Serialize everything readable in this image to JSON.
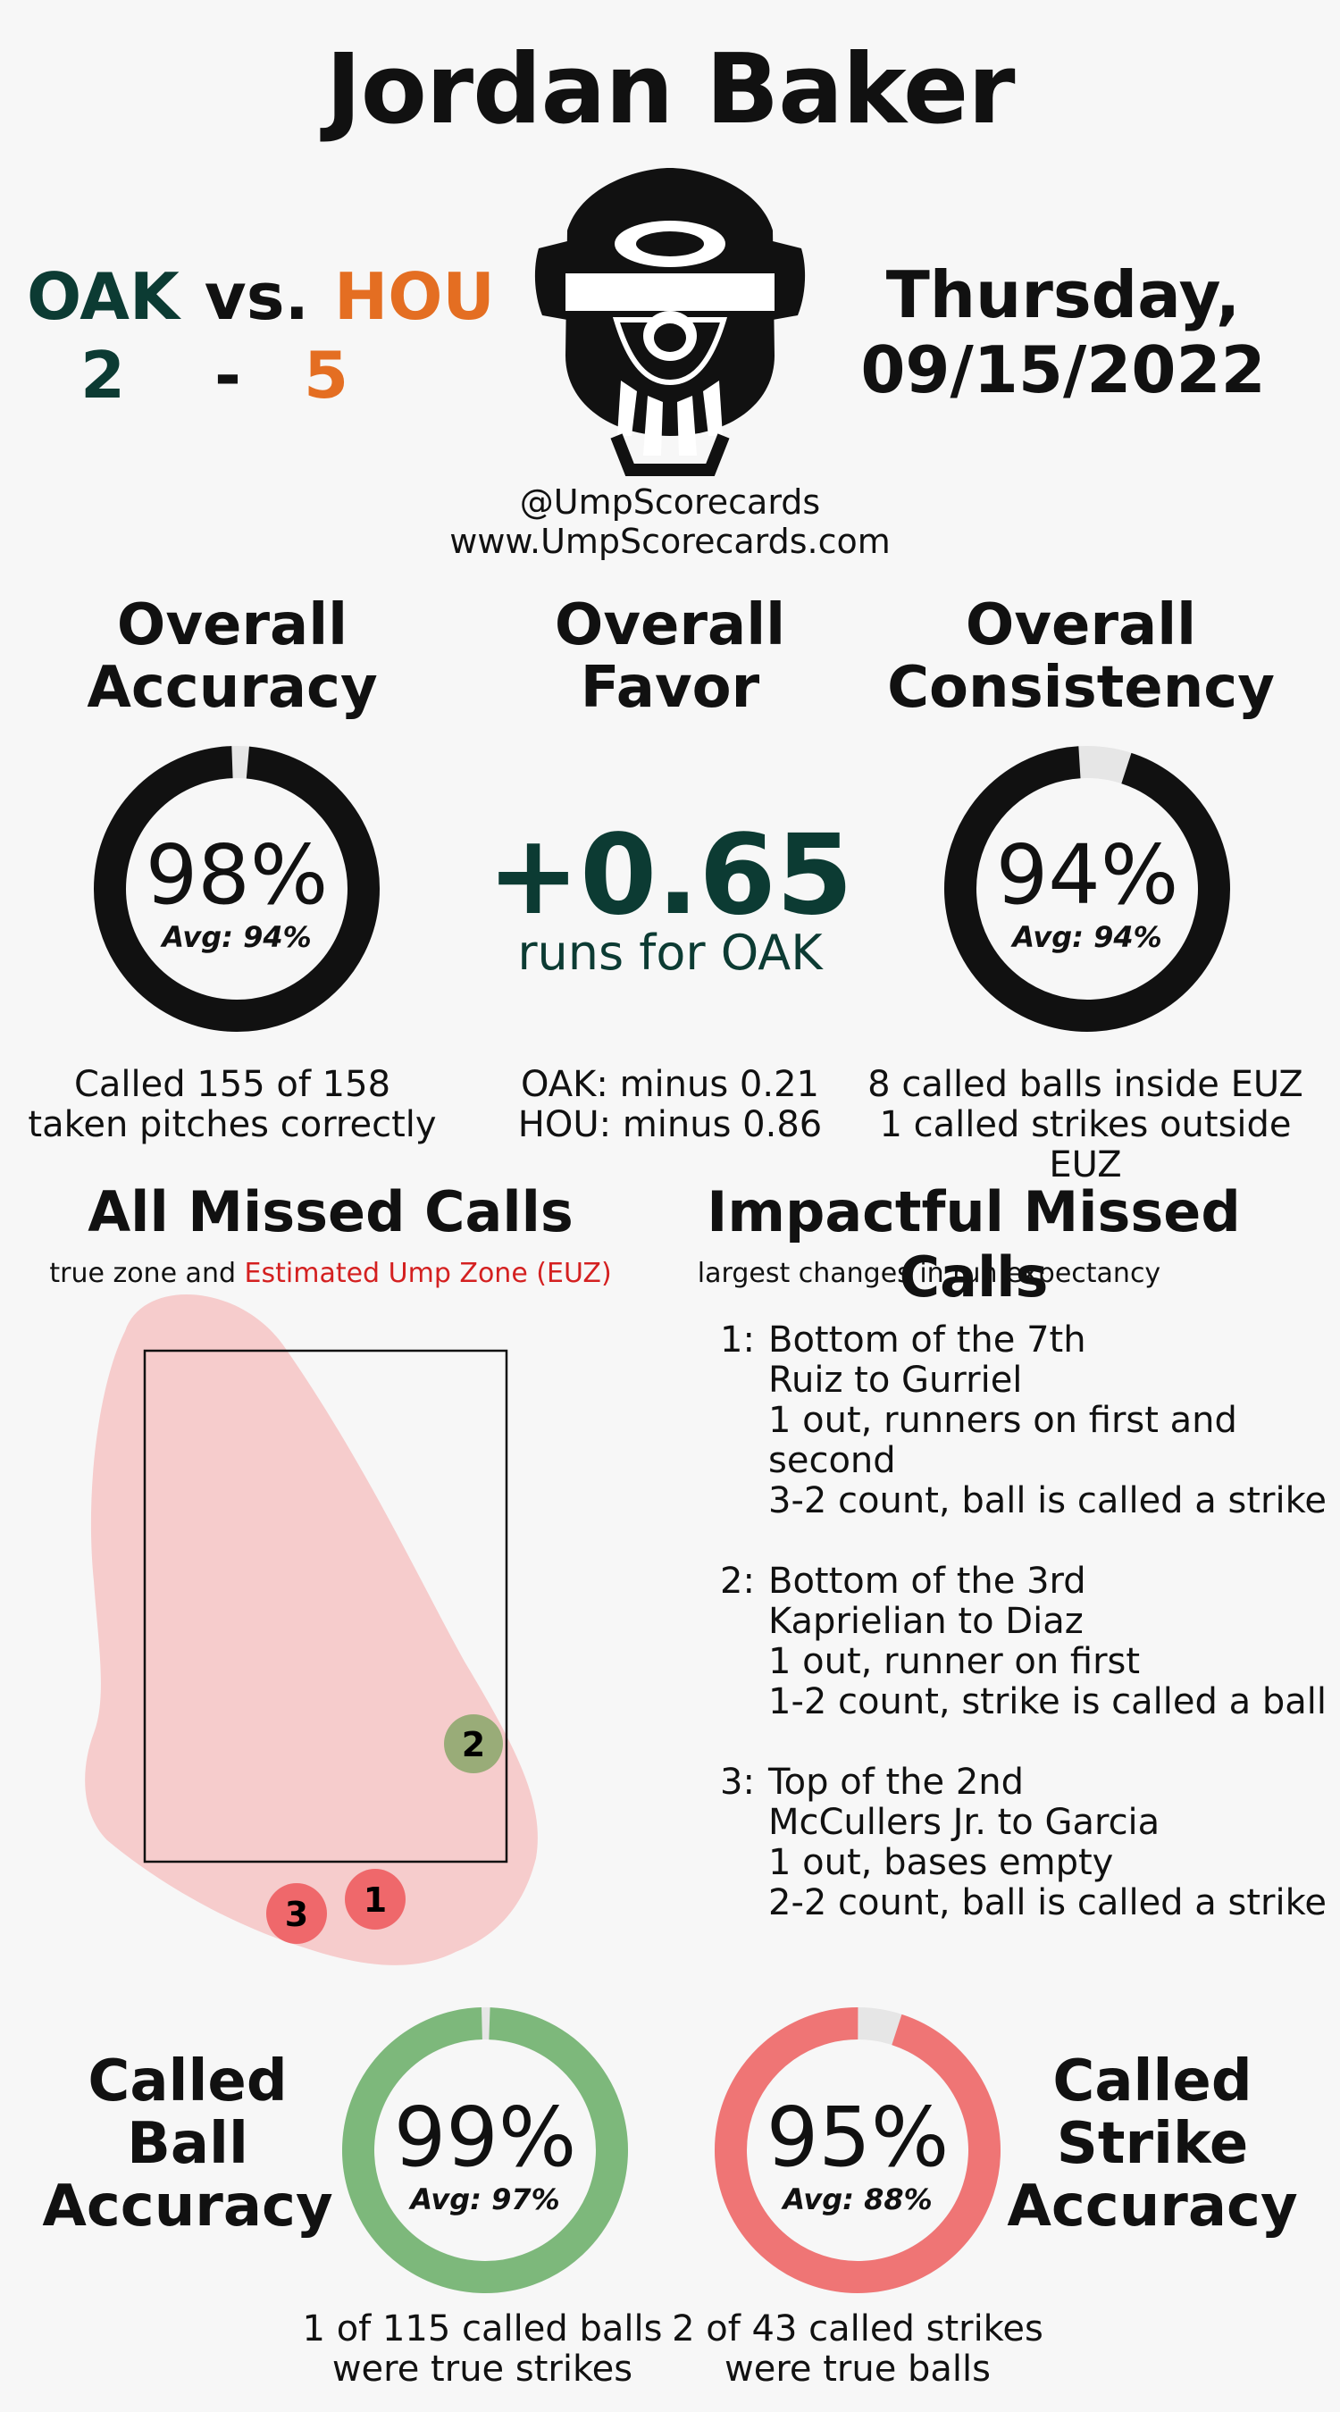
{
  "umpire_name": "Jordan Baker",
  "game": {
    "away_team": "OAK",
    "vs": "vs.",
    "home_team": "HOU",
    "away_score": "2",
    "dash": "-",
    "home_score": "5",
    "day": "Thursday,",
    "date": "09/15/2022"
  },
  "credits": {
    "handle": "@UmpScorecards",
    "website": "www.UmpScorecards.com"
  },
  "colors": {
    "oak": "#0c3b33",
    "hou": "#e46e22",
    "ball_green": "#7db87b",
    "strike_red": "#ef7575",
    "euz_red": "#d42020"
  },
  "overall_accuracy": {
    "header_line1": "Overall",
    "header_line2": "Accuracy",
    "value": "98%",
    "value_num": 98,
    "avg": "Avg: 94%",
    "desc_line1": "Called 155 of 158",
    "desc_line2": "taken pitches correctly"
  },
  "overall_favor": {
    "header_line1": "Overall",
    "header_line2": "Favor",
    "value": "+0.65",
    "sub": "runs for OAK",
    "desc_line1": "OAK: minus 0.21",
    "desc_line2": "HOU: minus 0.86"
  },
  "overall_consistency": {
    "header_line1": "Overall",
    "header_line2": "Consistency",
    "value": "94%",
    "value_num": 94,
    "avg": "Avg: 94%",
    "desc_line1": "8 called balls inside EUZ",
    "desc_line2": "1 called strikes outside EUZ"
  },
  "missed_calls": {
    "header": "All Missed Calls",
    "sub_prefix": "true zone and",
    "sub_euz": "Estimated Ump Zone (EUZ)",
    "markers": [
      {
        "label": "1",
        "type": "strike"
      },
      {
        "label": "2",
        "type": "ball"
      },
      {
        "label": "3",
        "type": "strike"
      }
    ]
  },
  "impactful": {
    "header": "Impactful Missed Calls",
    "sub": "largest changes in run expectancy",
    "items": [
      {
        "num": "1:",
        "l1": "Bottom of the 7th",
        "l2": "Ruiz to Gurriel",
        "l3": "1 out, runners on first and second",
        "l4": "3-2 count, ball is called a strike"
      },
      {
        "num": "2:",
        "l1": "Bottom of the 3rd",
        "l2": "Kaprielian to Diaz",
        "l3": "1 out, runner on first",
        "l4": "1-2 count, strike is called a ball"
      },
      {
        "num": "3:",
        "l1": "Top of the 2nd",
        "l2": "McCullers Jr. to Garcia",
        "l3": "1 out, bases empty",
        "l4": "2-2 count, ball is called a strike"
      }
    ]
  },
  "ball_accuracy": {
    "header_line1": "Called",
    "header_line2": "Ball",
    "header_line3": "Accuracy",
    "value": "99%",
    "value_num": 99,
    "avg": "Avg: 97%",
    "desc_line1": "1 of 115 called balls",
    "desc_line2": "were true strikes"
  },
  "strike_accuracy": {
    "header_line1": "Called",
    "header_line2": "Strike",
    "header_line3": "Accuracy",
    "value": "95%",
    "value_num": 95,
    "avg": "Avg: 88%",
    "desc_line1": "2 of 43 called strikes",
    "desc_line2": "were true balls"
  }
}
